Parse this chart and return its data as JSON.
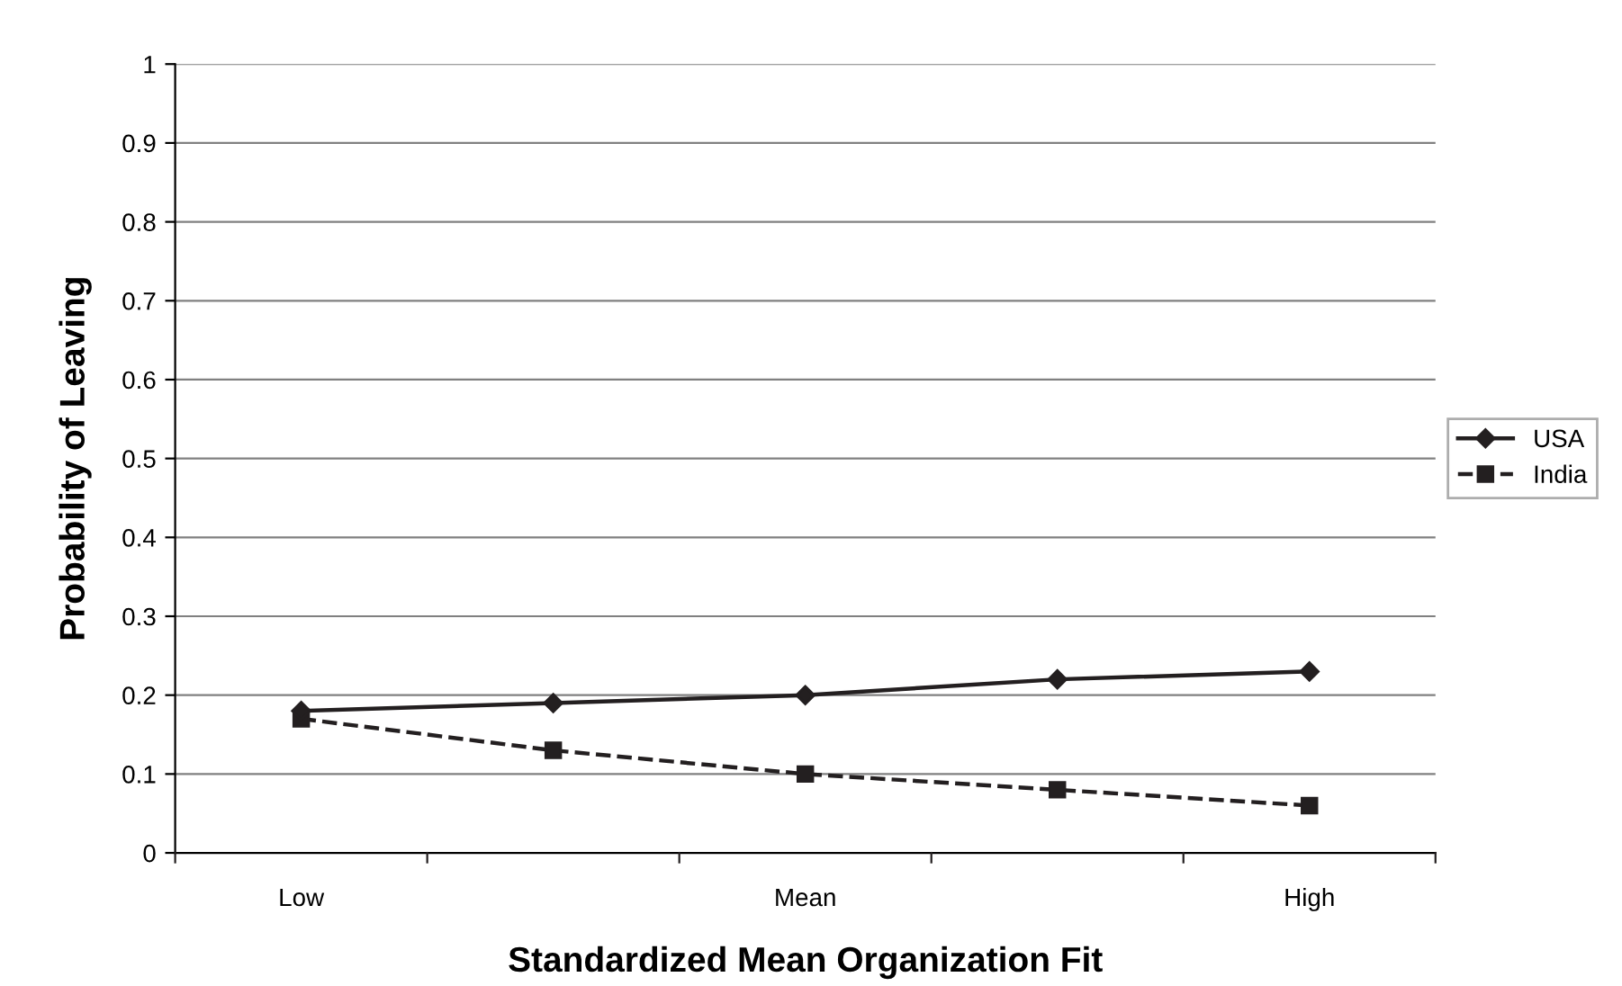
{
  "chart_data": {
    "type": "line",
    "xlabel": "Standardized Mean Organization Fit",
    "ylabel": "Probability of Leaving",
    "categories": [
      "Low",
      null,
      "Mean",
      null,
      "High"
    ],
    "series": [
      {
        "name": "USA",
        "color": "#231f20",
        "values": [
          0.18,
          0.19,
          0.2,
          0.22,
          0.23
        ],
        "marker": "diamond",
        "line_style": "solid"
      },
      {
        "name": "India",
        "color": "#231f20",
        "values": [
          0.17,
          0.13,
          0.1,
          0.08,
          0.06
        ],
        "marker": "square",
        "line_style": "dashed"
      }
    ],
    "ylim": [
      0,
      1
    ],
    "yticks": [
      0,
      0.1,
      0.2,
      0.3,
      0.4,
      0.5,
      0.6,
      0.7,
      0.8,
      0.9,
      1
    ],
    "grid": "y",
    "legend": "right"
  }
}
